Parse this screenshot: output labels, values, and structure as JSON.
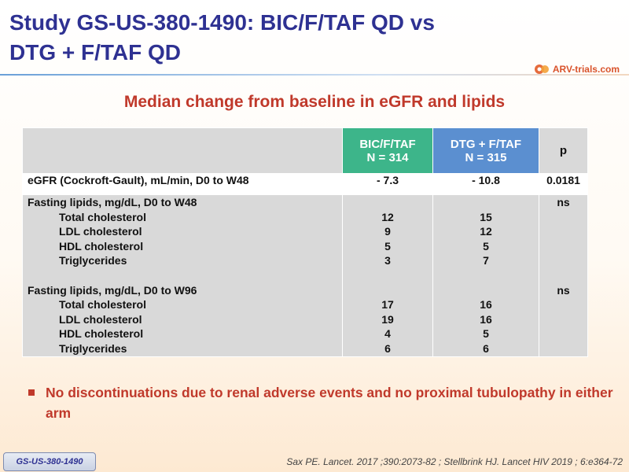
{
  "slide": {
    "title_line1": "Study GS-US-380-1490: BIC/F/TAF QD vs",
    "title_line2": "DTG + F/TAF QD",
    "subtitle": "Median change from baseline in eGFR and lipids"
  },
  "logo": {
    "text": "ARV-trials.com",
    "icon": "arv-logo-icon"
  },
  "table": {
    "header": {
      "arm1_name": "BIC/F/TAF",
      "arm1_n": "N = 314",
      "arm2_name": "DTG + F/TAF",
      "arm2_n": "N = 315",
      "p": "p"
    },
    "egfr": {
      "label": "eGFR (Cockroft-Gault), mL/min, D0 to W48",
      "arm1": "- 7.3",
      "arm2": "- 10.8",
      "p": "0.0181"
    },
    "lipids_w48": {
      "label": "Fasting lipids, mg/dL, D0 to W48",
      "p": "ns",
      "rows": [
        {
          "label": "Total cholesterol",
          "arm1": "12",
          "arm2": "15"
        },
        {
          "label": "LDL cholesterol",
          "arm1": "9",
          "arm2": "12"
        },
        {
          "label": "HDL cholesterol",
          "arm1": "5",
          "arm2": "5"
        },
        {
          "label": "Triglycerides",
          "arm1": "3",
          "arm2": "7"
        }
      ]
    },
    "lipids_w96": {
      "label": "Fasting lipids, mg/dL, D0 to W96",
      "p": "ns",
      "rows": [
        {
          "label": "Total cholesterol",
          "arm1": "17",
          "arm2": "16"
        },
        {
          "label": "LDL cholesterol",
          "arm1": "19",
          "arm2": "16"
        },
        {
          "label": "HDL cholesterol",
          "arm1": "4",
          "arm2": "5"
        },
        {
          "label": "Triglycerides",
          "arm1": "6",
          "arm2": "6"
        }
      ]
    }
  },
  "bullet": "No discontinuations due to renal adverse events and no proximal tubulopathy in either arm",
  "footer": {
    "study_tag": "GS-US-380-1490",
    "reference": "Sax PE. Lancet. 2017 ;390:2073-82 ; Stellbrink HJ. Lancet HIV 2019 ; 6:e364-72"
  },
  "colors": {
    "title": "#2e3192",
    "accent_red": "#c0392b",
    "arm1_header": "#3db58a",
    "arm2_header": "#5b8fd0",
    "table_grey": "#d9d9d9"
  }
}
